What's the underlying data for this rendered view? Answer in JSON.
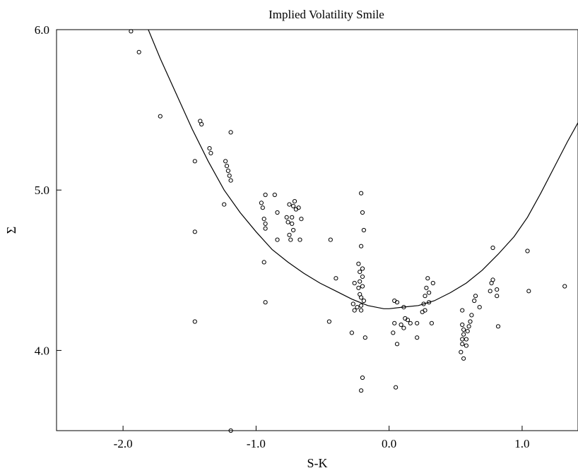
{
  "chart_data": {
    "type": "scatter",
    "title": "Implied Volatility Smile",
    "xlabel": "S-K",
    "ylabel": "Σ",
    "xlim": [
      -2.5,
      1.42
    ],
    "ylim": [
      3.5,
      6.0
    ],
    "x_ticks": [
      -2.0,
      -1.0,
      0.0,
      1.0
    ],
    "x_tick_labels": [
      "-2.0",
      "-1.0",
      "0.0",
      "1.0"
    ],
    "y_ticks": [
      4.0,
      5.0,
      6.0
    ],
    "y_tick_labels": [
      "4.0",
      "5.0",
      "6.0"
    ],
    "grid": false,
    "series": [
      {
        "type": "scatter",
        "marker": "open-circle",
        "points": [
          [
            -1.94,
            5.99
          ],
          [
            -1.88,
            5.86
          ],
          [
            -1.72,
            5.46
          ],
          [
            -1.42,
            5.43
          ],
          [
            -1.41,
            5.41
          ],
          [
            -1.35,
            5.26
          ],
          [
            -1.34,
            5.23
          ],
          [
            -1.46,
            5.18
          ],
          [
            -1.46,
            4.74
          ],
          [
            -1.46,
            4.18
          ],
          [
            -1.23,
            5.18
          ],
          [
            -1.22,
            5.15
          ],
          [
            -1.21,
            5.12
          ],
          [
            -1.2,
            5.09
          ],
          [
            -1.19,
            5.06
          ],
          [
            -1.19,
            5.36
          ],
          [
            -1.24,
            4.91
          ],
          [
            -1.19,
            3.5
          ],
          [
            -0.93,
            4.97
          ],
          [
            -0.86,
            4.97
          ],
          [
            -0.96,
            4.92
          ],
          [
            -0.95,
            4.89
          ],
          [
            -0.94,
            4.82
          ],
          [
            -0.93,
            4.79
          ],
          [
            -0.93,
            4.76
          ],
          [
            -0.94,
            4.55
          ],
          [
            -0.93,
            4.3
          ],
          [
            -0.84,
            4.86
          ],
          [
            -0.84,
            4.69
          ],
          [
            -0.77,
            4.83
          ],
          [
            -0.76,
            4.8
          ],
          [
            -0.75,
            4.72
          ],
          [
            -0.74,
            4.69
          ],
          [
            -0.73,
            4.79
          ],
          [
            -0.73,
            4.83
          ],
          [
            -0.72,
            4.75
          ],
          [
            -0.71,
            4.93
          ],
          [
            -0.7,
            4.88
          ],
          [
            -0.68,
            4.89
          ],
          [
            -0.66,
            4.82
          ],
          [
            -0.67,
            4.69
          ],
          [
            -0.75,
            4.91
          ],
          [
            -0.72,
            4.9
          ],
          [
            -0.44,
            4.69
          ],
          [
            -0.4,
            4.45
          ],
          [
            -0.45,
            4.18
          ],
          [
            -0.21,
            4.98
          ],
          [
            -0.2,
            4.86
          ],
          [
            -0.19,
            4.75
          ],
          [
            -0.21,
            4.65
          ],
          [
            -0.23,
            4.54
          ],
          [
            -0.22,
            4.49
          ],
          [
            -0.22,
            4.43
          ],
          [
            -0.2,
            4.51
          ],
          [
            -0.2,
            4.46
          ],
          [
            -0.2,
            4.4
          ],
          [
            -0.26,
            4.42
          ],
          [
            -0.23,
            4.39
          ],
          [
            -0.22,
            4.35
          ],
          [
            -0.21,
            4.33
          ],
          [
            -0.19,
            4.31
          ],
          [
            -0.21,
            4.28
          ],
          [
            -0.21,
            4.25
          ],
          [
            -0.24,
            4.27
          ],
          [
            -0.26,
            4.25
          ],
          [
            -0.27,
            4.29
          ],
          [
            -0.28,
            4.11
          ],
          [
            -0.18,
            4.08
          ],
          [
            -0.2,
            3.83
          ],
          [
            -0.21,
            3.75
          ],
          [
            0.04,
            4.31
          ],
          [
            0.06,
            4.3
          ],
          [
            0.04,
            4.17
          ],
          [
            0.09,
            4.16
          ],
          [
            0.11,
            4.14
          ],
          [
            0.12,
            4.2
          ],
          [
            0.14,
            4.19
          ],
          [
            0.16,
            4.17
          ],
          [
            0.11,
            4.27
          ],
          [
            0.03,
            4.11
          ],
          [
            0.06,
            4.04
          ],
          [
            0.05,
            3.77
          ],
          [
            0.21,
            4.08
          ],
          [
            0.21,
            4.17
          ],
          [
            0.25,
            4.24
          ],
          [
            0.26,
            4.29
          ],
          [
            0.27,
            4.34
          ],
          [
            0.28,
            4.39
          ],
          [
            0.29,
            4.45
          ],
          [
            0.3,
            4.36
          ],
          [
            0.3,
            4.3
          ],
          [
            0.32,
            4.17
          ],
          [
            0.33,
            4.42
          ],
          [
            0.27,
            4.25
          ],
          [
            0.55,
            4.25
          ],
          [
            0.55,
            4.16
          ],
          [
            0.56,
            4.13
          ],
          [
            0.56,
            4.1
          ],
          [
            0.55,
            4.07
          ],
          [
            0.55,
            4.04
          ],
          [
            0.54,
            3.99
          ],
          [
            0.56,
            3.95
          ],
          [
            0.58,
            4.03
          ],
          [
            0.58,
            4.07
          ],
          [
            0.59,
            4.12
          ],
          [
            0.6,
            4.15
          ],
          [
            0.61,
            4.18
          ],
          [
            0.62,
            4.22
          ],
          [
            0.64,
            4.31
          ],
          [
            0.65,
            4.34
          ],
          [
            0.68,
            4.27
          ],
          [
            0.76,
            4.37
          ],
          [
            0.77,
            4.42
          ],
          [
            0.78,
            4.44
          ],
          [
            0.78,
            4.64
          ],
          [
            0.81,
            4.34
          ],
          [
            0.81,
            4.38
          ],
          [
            0.82,
            4.15
          ],
          [
            1.04,
            4.62
          ],
          [
            1.05,
            4.37
          ],
          [
            1.32,
            4.4
          ]
        ]
      },
      {
        "type": "line",
        "points": [
          [
            -1.82,
            6.02
          ],
          [
            -1.72,
            5.82
          ],
          [
            -1.6,
            5.6
          ],
          [
            -1.48,
            5.38
          ],
          [
            -1.36,
            5.18
          ],
          [
            -1.24,
            5.0
          ],
          [
            -1.12,
            4.86
          ],
          [
            -1.0,
            4.74
          ],
          [
            -0.88,
            4.63
          ],
          [
            -0.76,
            4.55
          ],
          [
            -0.64,
            4.48
          ],
          [
            -0.52,
            4.42
          ],
          [
            -0.4,
            4.37
          ],
          [
            -0.28,
            4.32
          ],
          [
            -0.16,
            4.28
          ],
          [
            -0.04,
            4.26
          ],
          [
            0.0,
            4.26
          ],
          [
            0.1,
            4.27
          ],
          [
            0.22,
            4.28
          ],
          [
            0.34,
            4.31
          ],
          [
            0.46,
            4.36
          ],
          [
            0.58,
            4.42
          ],
          [
            0.7,
            4.5
          ],
          [
            0.82,
            4.6
          ],
          [
            0.94,
            4.71
          ],
          [
            1.04,
            4.83
          ],
          [
            1.14,
            4.98
          ],
          [
            1.24,
            5.14
          ],
          [
            1.34,
            5.3
          ],
          [
            1.42,
            5.42
          ]
        ]
      }
    ]
  }
}
